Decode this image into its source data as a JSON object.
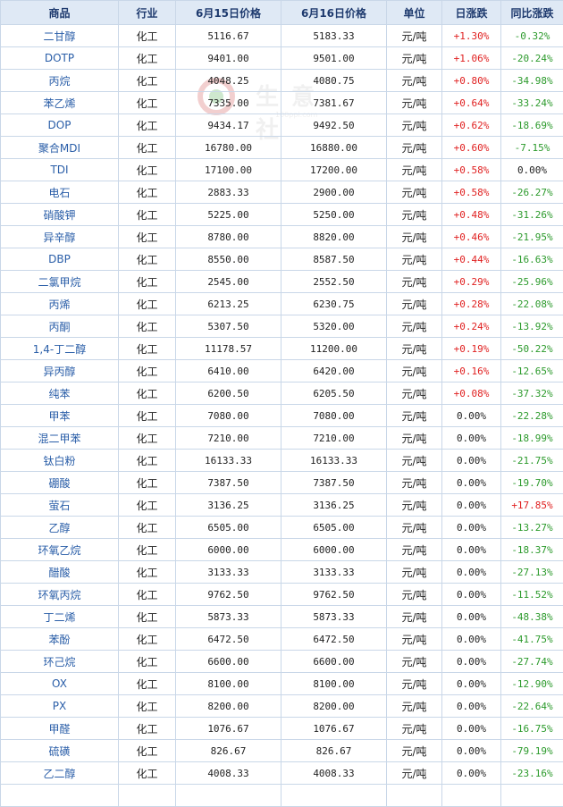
{
  "watermark": {
    "text": "生意社",
    "url": "100ppi.com"
  },
  "table": {
    "headers": [
      "商品",
      "行业",
      "6月15日价格",
      "6月16日价格",
      "单位",
      "日涨跌",
      "同比涨跌"
    ],
    "rows": [
      [
        "二甘醇",
        "化工",
        "5116.67",
        "5183.33",
        "元/吨",
        "+1.30%",
        "-0.32%"
      ],
      [
        "DOTP",
        "化工",
        "9401.00",
        "9501.00",
        "元/吨",
        "+1.06%",
        "-20.24%"
      ],
      [
        "丙烷",
        "化工",
        "4048.25",
        "4080.75",
        "元/吨",
        "+0.80%",
        "-34.98%"
      ],
      [
        "苯乙烯",
        "化工",
        "7335.00",
        "7381.67",
        "元/吨",
        "+0.64%",
        "-33.24%"
      ],
      [
        "DOP",
        "化工",
        "9434.17",
        "9492.50",
        "元/吨",
        "+0.62%",
        "-18.69%"
      ],
      [
        "聚合MDI",
        "化工",
        "16780.00",
        "16880.00",
        "元/吨",
        "+0.60%",
        "-7.15%"
      ],
      [
        "TDI",
        "化工",
        "17100.00",
        "17200.00",
        "元/吨",
        "+0.58%",
        "0.00%"
      ],
      [
        "电石",
        "化工",
        "2883.33",
        "2900.00",
        "元/吨",
        "+0.58%",
        "-26.27%"
      ],
      [
        "硝酸钾",
        "化工",
        "5225.00",
        "5250.00",
        "元/吨",
        "+0.48%",
        "-31.26%"
      ],
      [
        "异辛醇",
        "化工",
        "8780.00",
        "8820.00",
        "元/吨",
        "+0.46%",
        "-21.95%"
      ],
      [
        "DBP",
        "化工",
        "8550.00",
        "8587.50",
        "元/吨",
        "+0.44%",
        "-16.63%"
      ],
      [
        "二氯甲烷",
        "化工",
        "2545.00",
        "2552.50",
        "元/吨",
        "+0.29%",
        "-25.96%"
      ],
      [
        "丙烯",
        "化工",
        "6213.25",
        "6230.75",
        "元/吨",
        "+0.28%",
        "-22.08%"
      ],
      [
        "丙酮",
        "化工",
        "5307.50",
        "5320.00",
        "元/吨",
        "+0.24%",
        "-13.92%"
      ],
      [
        "1,4-丁二醇",
        "化工",
        "11178.57",
        "11200.00",
        "元/吨",
        "+0.19%",
        "-50.22%"
      ],
      [
        "异丙醇",
        "化工",
        "6410.00",
        "6420.00",
        "元/吨",
        "+0.16%",
        "-12.65%"
      ],
      [
        "纯苯",
        "化工",
        "6200.50",
        "6205.50",
        "元/吨",
        "+0.08%",
        "-37.32%"
      ],
      [
        "甲苯",
        "化工",
        "7080.00",
        "7080.00",
        "元/吨",
        "0.00%",
        "-22.28%"
      ],
      [
        "混二甲苯",
        "化工",
        "7210.00",
        "7210.00",
        "元/吨",
        "0.00%",
        "-18.99%"
      ],
      [
        "钛白粉",
        "化工",
        "16133.33",
        "16133.33",
        "元/吨",
        "0.00%",
        "-21.75%"
      ],
      [
        "硼酸",
        "化工",
        "7387.50",
        "7387.50",
        "元/吨",
        "0.00%",
        "-19.70%"
      ],
      [
        "萤石",
        "化工",
        "3136.25",
        "3136.25",
        "元/吨",
        "0.00%",
        "+17.85%"
      ],
      [
        "乙醇",
        "化工",
        "6505.00",
        "6505.00",
        "元/吨",
        "0.00%",
        "-13.27%"
      ],
      [
        "环氧乙烷",
        "化工",
        "6000.00",
        "6000.00",
        "元/吨",
        "0.00%",
        "-18.37%"
      ],
      [
        "醋酸",
        "化工",
        "3133.33",
        "3133.33",
        "元/吨",
        "0.00%",
        "-27.13%"
      ],
      [
        "环氧丙烷",
        "化工",
        "9762.50",
        "9762.50",
        "元/吨",
        "0.00%",
        "-11.52%"
      ],
      [
        "丁二烯",
        "化工",
        "5873.33",
        "5873.33",
        "元/吨",
        "0.00%",
        "-48.38%"
      ],
      [
        "苯酚",
        "化工",
        "6472.50",
        "6472.50",
        "元/吨",
        "0.00%",
        "-41.75%"
      ],
      [
        "环己烷",
        "化工",
        "6600.00",
        "6600.00",
        "元/吨",
        "0.00%",
        "-27.74%"
      ],
      [
        "OX",
        "化工",
        "8100.00",
        "8100.00",
        "元/吨",
        "0.00%",
        "-12.90%"
      ],
      [
        "PX",
        "化工",
        "8200.00",
        "8200.00",
        "元/吨",
        "0.00%",
        "-22.64%"
      ],
      [
        "甲醛",
        "化工",
        "1076.67",
        "1076.67",
        "元/吨",
        "0.00%",
        "-16.75%"
      ],
      [
        "硫磺",
        "化工",
        "826.67",
        "826.67",
        "元/吨",
        "0.00%",
        "-79.19%"
      ],
      [
        "乙二醇",
        "化工",
        "4008.33",
        "4008.33",
        "元/吨",
        "0.00%",
        "-23.16%"
      ],
      [
        "",
        "",
        "",
        "",
        "",
        "",
        ""
      ]
    ]
  },
  "colors": {
    "header_bg": "#dfe9f5",
    "border": "#c9d7e8",
    "name_link": "#2a5ea8",
    "up": "#e02020",
    "down": "#2c9a2c"
  }
}
